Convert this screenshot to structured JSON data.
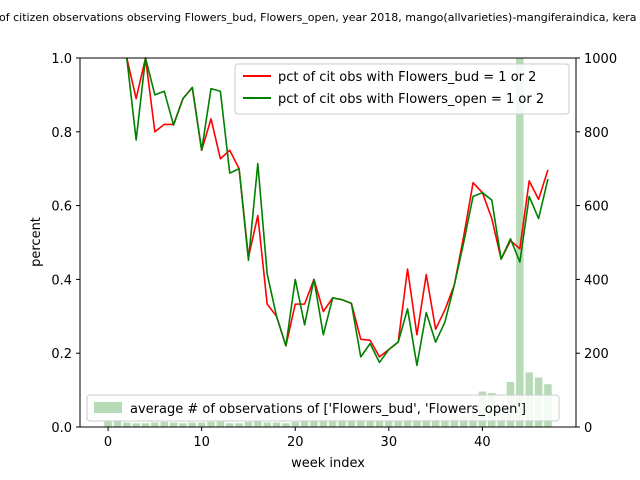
{
  "chart_data": {
    "type": "line",
    "title": "of citizen observations observing Flowers_bud, Flowers_open, year 2018, mango(allvarieties)-mangiferaindica, kera",
    "xlabel": "week index",
    "ylabel": "percent",
    "xlim": [
      -3,
      50
    ],
    "ylim": [
      0,
      1.0
    ],
    "y2lim": [
      0,
      1000
    ],
    "x_ticks": [
      0,
      10,
      20,
      30,
      40
    ],
    "x_tick_labels": [
      "0",
      "10",
      "20",
      "30",
      "40"
    ],
    "y_ticks": [
      0.0,
      0.2,
      0.4,
      0.6,
      0.8,
      1.0
    ],
    "y_tick_labels": [
      "0.0",
      "0.2",
      "0.4",
      "0.6",
      "0.8",
      "1.0"
    ],
    "y2_ticks": [
      0,
      200,
      400,
      600,
      800,
      1000
    ],
    "y2_tick_labels": [
      "0",
      "200",
      "400",
      "600",
      "800",
      "1000"
    ],
    "x": [
      0,
      1,
      2,
      3,
      4,
      5,
      6,
      7,
      8,
      9,
      10,
      11,
      12,
      13,
      14,
      15,
      16,
      17,
      18,
      19,
      20,
      21,
      22,
      23,
      24,
      25,
      26,
      27,
      28,
      29,
      30,
      31,
      32,
      33,
      34,
      35,
      36,
      37,
      38,
      39,
      40,
      41,
      42,
      43,
      44,
      45,
      46,
      47
    ],
    "series": [
      {
        "name": "pct of cit obs with Flowers_bud = 1 or 2",
        "color": "#ff0000",
        "values": [
          null,
          null,
          1.0,
          0.89,
          1.0,
          0.8,
          0.82,
          0.82,
          0.89,
          0.92,
          0.75,
          0.835,
          0.727,
          0.75,
          0.7,
          0.46,
          0.573,
          0.333,
          0.3,
          0.22,
          0.333,
          0.333,
          0.4,
          0.313,
          0.35,
          0.345,
          0.335,
          0.238,
          0.235,
          0.19,
          0.21,
          0.23,
          0.428,
          0.25,
          0.413,
          0.265,
          0.318,
          0.385,
          0.517,
          0.662,
          0.635,
          0.565,
          0.455,
          0.505,
          0.483,
          0.667,
          0.617,
          0.697
        ]
      },
      {
        "name": "pct of cit obs with Flowers_open = 1 or 2",
        "color": "#008000",
        "values": [
          null,
          null,
          1.0,
          0.778,
          1.0,
          0.9,
          0.91,
          0.818,
          0.89,
          0.92,
          0.75,
          0.917,
          0.91,
          0.688,
          0.7,
          0.452,
          0.714,
          0.415,
          0.3,
          0.22,
          0.4,
          0.277,
          0.4,
          0.25,
          0.35,
          0.345,
          0.335,
          0.19,
          0.226,
          0.175,
          0.21,
          0.23,
          0.32,
          0.167,
          0.31,
          0.23,
          0.285,
          0.385,
          0.5,
          0.625,
          0.635,
          0.615,
          0.455,
          0.51,
          0.447,
          0.625,
          0.565,
          0.672
        ]
      }
    ],
    "bars": {
      "name": "average # of observations of ['Flowers_bud', 'Flowers_open']",
      "color": "#b6dbb6",
      "values": [
        15,
        20,
        12,
        10,
        10,
        12,
        14,
        12,
        10,
        12,
        12,
        14,
        16,
        10,
        10,
        14,
        16,
        12,
        12,
        10,
        14,
        16,
        20,
        22,
        22,
        22,
        20,
        24,
        20,
        18,
        16,
        18,
        22,
        20,
        22,
        20,
        22,
        26,
        28,
        34,
        96,
        92,
        44,
        122,
        1000,
        148,
        134,
        116
      ]
    },
    "legend_upper": [
      {
        "label": "pct of cit obs with Flowers_bud = 1 or 2",
        "color": "#ff0000"
      },
      {
        "label": "pct of cit obs with Flowers_open = 1 or 2",
        "color": "#008000"
      }
    ],
    "legend_lower": {
      "label": "average # of observations of ['Flowers_bud', 'Flowers_open']",
      "color": "#b6dbb6"
    }
  }
}
